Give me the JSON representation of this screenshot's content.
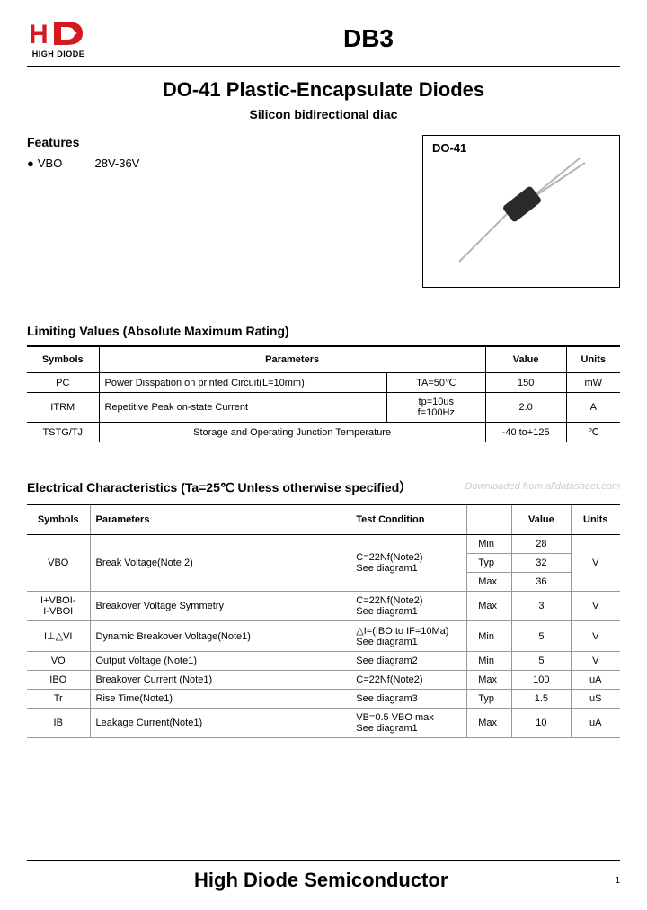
{
  "header": {
    "logo_text": "HIGH DIODE",
    "logo_colors": {
      "h": "#d4191f",
      "d": "#d4191f"
    },
    "part_number": "DB3"
  },
  "title": "DO-41 Plastic-Encapsulate Diodes",
  "subtitle": "Silicon bidirectional diac",
  "features": {
    "heading": "Features",
    "items": [
      {
        "label": "VBO",
        "value": "28V-36V"
      }
    ]
  },
  "package": {
    "label": "DO-41",
    "body_color": "#2a2a2a",
    "lead_color": "#b5b5b5"
  },
  "limiting": {
    "heading": "Limiting Values (Absolute Maximum Rating)",
    "columns": [
      "Symbols",
      "Parameters",
      "",
      "Value",
      "Units"
    ],
    "rows": [
      {
        "sym": "PC",
        "par": "Power Disspation on printed Circuit(L=10mm)",
        "cond": "TA=50℃",
        "val": "150",
        "unit": "mW"
      },
      {
        "sym": "ITRM",
        "par": "Repetitive Peak on-state Current",
        "cond": "tp=10us\nf=100Hz",
        "val": "2.0",
        "unit": "A"
      },
      {
        "sym": "TSTG/TJ",
        "par": "Storage and Operating Junction Temperature",
        "cond": "",
        "val": "-40 to+125",
        "unit": "℃"
      }
    ]
  },
  "electrical": {
    "heading": "Electrical Characteristics (Ta=25℃ Unless otherwise specified）",
    "columns": [
      "Symbols",
      "Parameters",
      "Test Condition",
      "",
      "Value",
      "Units"
    ],
    "rows": [
      {
        "sym": "VBO",
        "par": "Break Voltage(Note 2)",
        "cond": "C=22Nf(Note2)\nSee diagram1",
        "lbl": "Min",
        "val": "28",
        "unit": "V",
        "rowspan_sym": 3,
        "rowspan_par": 3,
        "rowspan_cond": 3,
        "rowspan_unit": 3
      },
      {
        "lbl": "Typ",
        "val": "32"
      },
      {
        "lbl": "Max",
        "val": "36"
      },
      {
        "sym": "I+VBOI-\nI-VBOI",
        "par": "Breakover Voltage Symmetry",
        "cond": "C=22Nf(Note2)\nSee diagram1",
        "lbl": "Max",
        "val": "3",
        "unit": "V"
      },
      {
        "sym": "I⊥△VI",
        "par": "Dynamic Breakover Voltage(Note1)",
        "cond": "△I=(IBO to IF=10Ma)\nSee diagram1",
        "lbl": "Min",
        "val": "5",
        "unit": "V"
      },
      {
        "sym": "VO",
        "par": "Output Voltage (Note1)",
        "cond": "See diagram2",
        "lbl": "Min",
        "val": "5",
        "unit": "V"
      },
      {
        "sym": "IBO",
        "par": "Breakover Current (Note1)",
        "cond": "C=22Nf(Note2)",
        "lbl": "Max",
        "val": "100",
        "unit": "uA"
      },
      {
        "sym": "Tr",
        "par": "Rise Time(Note1)",
        "cond": "See diagram3",
        "lbl": "Typ",
        "val": "1.5",
        "unit": "uS"
      },
      {
        "sym": "IB",
        "par": "Leakage Current(Note1)",
        "cond": "VB=0.5 VBO max\nSee diagram1",
        "lbl": "Max",
        "val": "10",
        "unit": "uA"
      }
    ]
  },
  "watermark": "Downloaded from alldatasheet.com",
  "footer": {
    "company": "High Diode Semiconductor",
    "page": "1"
  }
}
